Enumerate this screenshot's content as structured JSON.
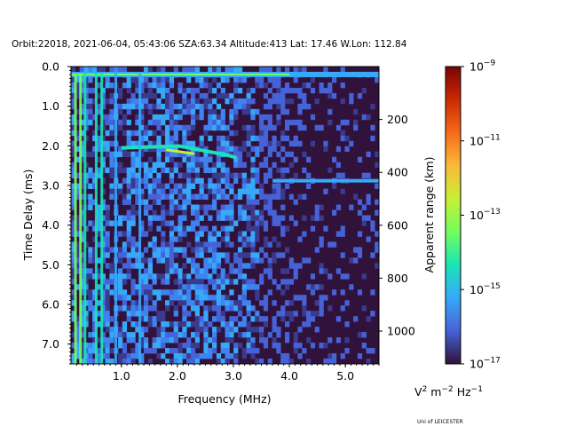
{
  "chart_data": {
    "type": "heatmap",
    "title": "Orbit:22018, 2021-06-04, 05:43:06 SZA:63.34 Altitude:413 Lat: 17.46 W.Lon: 112.84",
    "xlabel": "Frequency (MHz)",
    "ylabel": "Time Delay (ms)",
    "y2label": "Apparent range (km)",
    "xlim": [
      0.1,
      5.6
    ],
    "ylim": [
      7.5,
      0.0
    ],
    "x_ticks": [
      "1.0",
      "2.0",
      "3.0",
      "4.0",
      "5.0"
    ],
    "x_tick_values": [
      1.0,
      2.0,
      3.0,
      4.0,
      5.0
    ],
    "y_ticks": [
      "0.0",
      "1.0",
      "2.0",
      "3.0",
      "4.0",
      "5.0",
      "6.0",
      "7.0"
    ],
    "y_tick_values": [
      0,
      1,
      2,
      3,
      4,
      5,
      6,
      7
    ],
    "y2_ticks": [
      "200",
      "400",
      "600",
      "800",
      "1000"
    ],
    "y2_tick_values": [
      200,
      400,
      600,
      800,
      1000
    ],
    "colorbar": {
      "scale": "log",
      "range": [
        1e-17,
        1e-09
      ],
      "ticks": [
        {
          "base": "10",
          "exp": "−9",
          "value": 1e-09
        },
        {
          "base": "10",
          "exp": "−11",
          "value": 1e-11
        },
        {
          "base": "10",
          "exp": "−13",
          "value": 1e-13
        },
        {
          "base": "10",
          "exp": "−15",
          "value": 1e-15
        },
        {
          "base": "10",
          "exp": "−17",
          "value": 1e-17
        }
      ],
      "colormap": "turbo",
      "colors": [
        "#30123b",
        "#4662d7",
        "#36aaf9",
        "#1ae4b6",
        "#72fe5e",
        "#c8ef34",
        "#faba39",
        "#f66b19",
        "#ca2a04",
        "#7a0403"
      ]
    },
    "features": [
      {
        "name": "top-band",
        "delay_ms": 0.2,
        "freq_range_mhz": [
          0.1,
          5.6
        ]
      },
      {
        "name": "trace-low",
        "freq_range_mhz": [
          1.0,
          3.05
        ],
        "delay_ms": [
          2.05,
          2.3
        ]
      },
      {
        "name": "trace-high",
        "freq_range_mhz": [
          3.7,
          5.6
        ],
        "delay_ms": 2.88
      },
      {
        "name": "vertical-lines",
        "freq_mhz": [
          0.18,
          0.27,
          0.35,
          0.55,
          0.65,
          0.9,
          1.33
        ]
      }
    ]
  },
  "units_parts": {
    "v": "V",
    "sup2": "2",
    "m": " m",
    "supm2": "−2",
    "hz": " Hz",
    "supm1": "−1"
  },
  "credit": "Uni of LEICESTER"
}
